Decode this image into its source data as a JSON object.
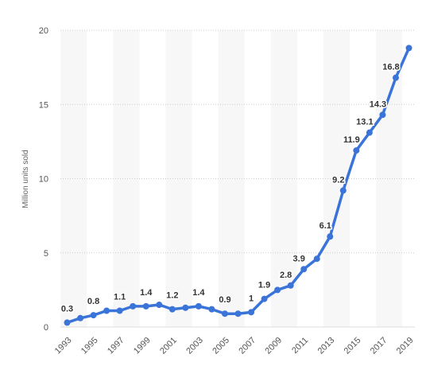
{
  "chart_data": {
    "type": "line",
    "ylabel": "Million units sold",
    "xlabel": "",
    "ylim": [
      0,
      20
    ],
    "yticks": [
      0,
      5,
      10,
      15,
      20
    ],
    "grid": "horizontal dotted",
    "line_color": "#3a74d8",
    "band_color": "#f7f7f7",
    "x": [
      1993,
      1994,
      1995,
      1996,
      1997,
      1998,
      1999,
      2000,
      2001,
      2002,
      2003,
      2004,
      2005,
      2006,
      2007,
      2008,
      2009,
      2010,
      2011,
      2012,
      2013,
      2014,
      2015,
      2016,
      2017,
      2018,
      2019
    ],
    "x_tick_labels": [
      "1993",
      "1995",
      "1997",
      "1999",
      "2001",
      "2003",
      "2005",
      "2007",
      "2009",
      "2011",
      "2013",
      "2015",
      "2017",
      "2019"
    ],
    "series": [
      {
        "values": [
          0.3,
          0.6,
          0.8,
          1.1,
          1.1,
          1.4,
          1.4,
          1.5,
          1.2,
          1.3,
          1.4,
          1.2,
          0.9,
          0.9,
          1.0,
          1.9,
          2.5,
          2.8,
          3.9,
          4.6,
          6.1,
          9.2,
          11.9,
          13.1,
          14.3,
          16.8,
          18.8
        ]
      }
    ],
    "data_labels": [
      {
        "x": 1993,
        "text": "0.3"
      },
      {
        "x": 1995,
        "text": "0.8"
      },
      {
        "x": 1997,
        "text": "1.1"
      },
      {
        "x": 1999,
        "text": "1.4"
      },
      {
        "x": 2001,
        "text": "1.2"
      },
      {
        "x": 2003,
        "text": "1.4"
      },
      {
        "x": 2005,
        "text": "0.9"
      },
      {
        "x": 2007,
        "text": "1"
      },
      {
        "x": 2008,
        "text": "1.9"
      },
      {
        "x": 2010,
        "text": "2.8"
      },
      {
        "x": 2011,
        "text": "3.9"
      },
      {
        "x": 2013,
        "text": "6.1"
      },
      {
        "x": 2014,
        "text": "9.2"
      },
      {
        "x": 2015,
        "text": "11.9"
      },
      {
        "x": 2016,
        "text": "13.1"
      },
      {
        "x": 2017,
        "text": "14.3"
      },
      {
        "x": 2018,
        "text": "16.8"
      }
    ]
  }
}
